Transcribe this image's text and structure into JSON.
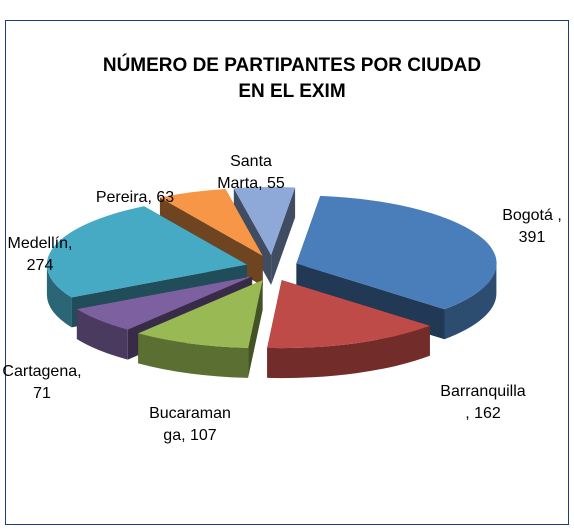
{
  "chart_data": {
    "type": "pie",
    "title": [
      "NÚMERO DE PARTIPANTES POR CIUDAD",
      "EN EL EXIM"
    ],
    "values": [
      391,
      162,
      107,
      71,
      274,
      63,
      55
    ],
    "value_labels": [
      [
        "Bogotá ,",
        "391"
      ],
      [
        "Barranquilla",
        ", 162"
      ],
      [
        "Bucaraman",
        "ga, 107"
      ],
      [
        "Cartagena,",
        "71"
      ],
      [
        "Medellín,",
        "274"
      ],
      [
        "Pereira, 63"
      ],
      [
        "Santa",
        "Marta, 55"
      ]
    ],
    "colors": [
      "#4a7ebb",
      "#be4b48",
      "#98b954",
      "#7d60a0",
      "#46aac5",
      "#f79646",
      "#8ea9d8"
    ],
    "exploded": true,
    "three_d": true
  }
}
